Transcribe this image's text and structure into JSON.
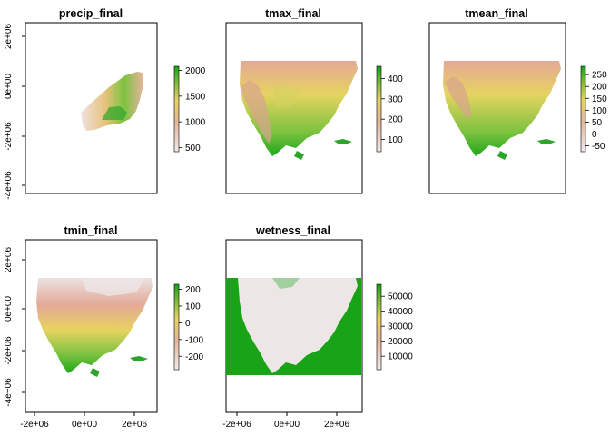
{
  "chart_data": [
    {
      "type": "heatmap",
      "title": "precip_final",
      "xlabel": "",
      "ylabel": "",
      "x_ticks": [],
      "y_ticks": [
        "2e+06",
        "0e+00",
        "-2e+06",
        "-4e+06"
      ],
      "legend": {
        "position": "right",
        "ticks": [
          "2000",
          "1500",
          "1000",
          "500"
        ],
        "min": 420,
        "max": 2080
      },
      "colors": {
        "low": "#f2eaea",
        "mid": "#e6d360",
        "high": "#19a317"
      }
    },
    {
      "type": "heatmap",
      "title": "tmax_final",
      "xlabel": "",
      "ylabel": "",
      "x_ticks": [],
      "y_ticks": [],
      "legend": {
        "position": "right",
        "ticks": [
          "400",
          "300",
          "200",
          "100"
        ],
        "min": 40,
        "max": 460
      },
      "colors": {
        "low": "#f2eaea",
        "mid": "#e6d360",
        "high": "#19a317"
      }
    },
    {
      "type": "heatmap",
      "title": "tmean_final",
      "xlabel": "",
      "ylabel": "",
      "x_ticks": [],
      "y_ticks": [],
      "legend": {
        "position": "right",
        "ticks": [
          "250",
          "200",
          "150",
          "100",
          "50",
          "0",
          "-50"
        ],
        "min": -75,
        "max": 285
      },
      "colors": {
        "low": "#f2eaea",
        "mid": "#e6d360",
        "high": "#19a317"
      }
    },
    {
      "type": "heatmap",
      "title": "tmin_final",
      "xlabel": "",
      "ylabel": "",
      "x_ticks": [
        "-2e+06",
        "0e+00",
        "2e+06"
      ],
      "y_ticks": [
        "2e+06",
        "0e+00",
        "-2e+06",
        "-4e+06"
      ],
      "legend": {
        "position": "right",
        "ticks": [
          "200",
          "100",
          "0",
          "-100",
          "-200"
        ],
        "min": -280,
        "max": 230
      },
      "colors": {
        "low": "#f2eaea",
        "mid": "#e6d360",
        "high": "#19a317"
      }
    },
    {
      "type": "heatmap",
      "title": "wetness_final",
      "xlabel": "",
      "ylabel": "",
      "x_ticks": [
        "-2e+06",
        "0e+00",
        "2e+06"
      ],
      "y_ticks": [],
      "legend": {
        "position": "right",
        "ticks": [
          "50000",
          "40000",
          "30000",
          "20000",
          "10000"
        ],
        "min": 1000,
        "max": 58000
      },
      "colors": {
        "low": "#f2eaea",
        "mid": "#e6d360",
        "high": "#19a317"
      }
    }
  ]
}
